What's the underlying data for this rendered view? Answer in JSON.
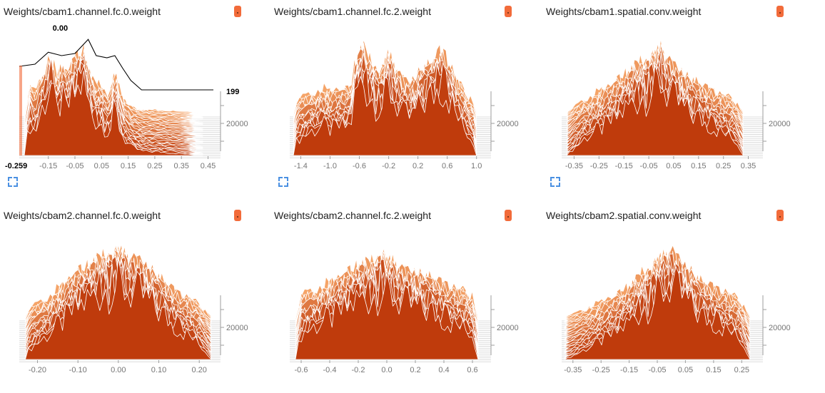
{
  "colors": {
    "front": "#bf3b0c",
    "back": "#f5a468",
    "slice_stroke": "#ffffff",
    "axis": "#9e9e9e",
    "grid": "#dcdcdc",
    "badge": "#f26b3a"
  },
  "icons": {
    "badge": "color-swatch-icon",
    "expand": "expand-icon"
  },
  "charts": [
    {
      "title": "Weights/cbam1.channel.fc.0.weight",
      "chart_data": {
        "type": "histogram",
        "mode": "offset",
        "x_ticks": [
          "-0.15",
          "-0.05",
          "0.05",
          "0.15",
          "0.25",
          "0.35",
          "0.45"
        ],
        "x_tick_values": [
          -0.15,
          -0.05,
          0.05,
          0.15,
          0.25,
          0.35,
          0.45
        ],
        "xlim": [
          -0.259,
          0.47
        ],
        "y_tick": "20000",
        "hover": {
          "x_value": "0.00",
          "x_min_label": "-0.259",
          "step": "199"
        },
        "profile": [
          [
            -0.24,
            0.0
          ],
          [
            -0.22,
            0.45
          ],
          [
            -0.2,
            0.3
          ],
          [
            -0.18,
            0.55
          ],
          [
            -0.16,
            0.75
          ],
          [
            -0.14,
            0.95
          ],
          [
            -0.12,
            0.55
          ],
          [
            -0.1,
            0.75
          ],
          [
            -0.08,
            0.6
          ],
          [
            -0.06,
            0.8
          ],
          [
            -0.04,
            0.85
          ],
          [
            -0.02,
            1.0
          ],
          [
            0.0,
            0.7
          ],
          [
            0.02,
            0.5
          ],
          [
            0.04,
            0.45
          ],
          [
            0.06,
            0.4
          ],
          [
            0.08,
            0.3
          ],
          [
            0.1,
            0.65
          ],
          [
            0.12,
            0.35
          ],
          [
            0.14,
            0.2
          ],
          [
            0.16,
            0.12
          ],
          [
            0.2,
            0.06
          ],
          [
            0.26,
            0.05
          ],
          [
            0.3,
            0.04
          ],
          [
            0.36,
            0.02
          ],
          [
            0.43,
            0.0
          ]
        ],
        "hover_profile": [
          [
            -0.259,
            0.55
          ],
          [
            -0.2,
            0.6
          ],
          [
            -0.15,
            0.88
          ],
          [
            -0.1,
            0.8
          ],
          [
            -0.05,
            0.85
          ],
          [
            0.0,
            1.18
          ],
          [
            0.03,
            0.8
          ],
          [
            0.07,
            0.75
          ],
          [
            0.1,
            0.8
          ],
          [
            0.13,
            0.5
          ],
          [
            0.16,
            0.22
          ],
          [
            0.2,
            0.0
          ],
          [
            0.47,
            0.0
          ]
        ]
      }
    },
    {
      "title": "Weights/cbam1.channel.fc.2.weight",
      "chart_data": {
        "type": "histogram",
        "mode": "offset",
        "x_ticks": [
          "-1.4",
          "-1.0",
          "-0.6",
          "-0.2",
          "0.2",
          "0.6",
          "1.0"
        ],
        "x_tick_values": [
          -1.4,
          -1.0,
          -0.6,
          -0.2,
          0.2,
          0.6,
          1.0
        ],
        "xlim": [
          -1.55,
          1.1
        ],
        "y_tick": "20000",
        "profile": [
          [
            -1.5,
            0.0
          ],
          [
            -1.45,
            0.22
          ],
          [
            -1.3,
            0.3
          ],
          [
            -1.1,
            0.4
          ],
          [
            -1.0,
            0.35
          ],
          [
            -0.9,
            0.38
          ],
          [
            -0.72,
            0.4
          ],
          [
            -0.65,
            0.85
          ],
          [
            -0.55,
            1.0
          ],
          [
            -0.45,
            0.8
          ],
          [
            -0.3,
            0.65
          ],
          [
            -0.2,
            0.9
          ],
          [
            -0.1,
            0.7
          ],
          [
            0.0,
            0.55
          ],
          [
            0.1,
            0.5
          ],
          [
            0.25,
            0.7
          ],
          [
            0.4,
            0.8
          ],
          [
            0.5,
            0.95
          ],
          [
            0.6,
            0.85
          ],
          [
            0.7,
            0.6
          ],
          [
            0.8,
            0.4
          ],
          [
            0.95,
            0.2
          ],
          [
            1.0,
            0.0
          ]
        ]
      }
    },
    {
      "title": "Weights/cbam1.spatial.conv.weight",
      "chart_data": {
        "type": "histogram",
        "mode": "offset",
        "x_ticks": [
          "-0.35",
          "-0.25",
          "-0.15",
          "-0.05",
          "0.05",
          "0.15",
          "0.25",
          "0.35"
        ],
        "x_tick_values": [
          -0.35,
          -0.25,
          -0.15,
          -0.05,
          0.05,
          0.15,
          0.25,
          0.35
        ],
        "xlim": [
          -0.4,
          0.38
        ],
        "y_tick": "20000",
        "profile": [
          [
            -0.38,
            0.0
          ],
          [
            -0.35,
            0.1
          ],
          [
            -0.3,
            0.25
          ],
          [
            -0.25,
            0.35
          ],
          [
            -0.2,
            0.45
          ],
          [
            -0.15,
            0.6
          ],
          [
            -0.1,
            0.75
          ],
          [
            -0.05,
            0.85
          ],
          [
            -0.02,
            0.9
          ],
          [
            0.0,
            1.0
          ],
          [
            0.02,
            0.85
          ],
          [
            0.05,
            0.75
          ],
          [
            0.1,
            0.6
          ],
          [
            0.15,
            0.5
          ],
          [
            0.2,
            0.4
          ],
          [
            0.25,
            0.3
          ],
          [
            0.3,
            0.2
          ],
          [
            0.33,
            0.0
          ]
        ]
      }
    },
    {
      "title": "Weights/cbam2.channel.fc.0.weight",
      "chart_data": {
        "type": "histogram",
        "mode": "offset",
        "x_ticks": [
          "-0.20",
          "-0.10",
          "0.00",
          "0.10",
          "0.20"
        ],
        "x_tick_values": [
          -0.2,
          -0.1,
          0.0,
          0.1,
          0.2
        ],
        "xlim": [
          -0.245,
          0.235
        ],
        "y_tick": "20000",
        "profile": [
          [
            -0.23,
            0.0
          ],
          [
            -0.22,
            0.15
          ],
          [
            -0.18,
            0.3
          ],
          [
            -0.14,
            0.5
          ],
          [
            -0.1,
            0.7
          ],
          [
            -0.06,
            0.85
          ],
          [
            -0.03,
            0.95
          ],
          [
            0.0,
            1.0
          ],
          [
            0.03,
            0.9
          ],
          [
            0.06,
            0.85
          ],
          [
            0.1,
            0.65
          ],
          [
            0.14,
            0.45
          ],
          [
            0.18,
            0.3
          ],
          [
            0.21,
            0.15
          ],
          [
            0.23,
            0.0
          ]
        ]
      }
    },
    {
      "title": "Weights/cbam2.channel.fc.2.weight",
      "chart_data": {
        "type": "histogram",
        "mode": "offset",
        "x_ticks": [
          "-0.6",
          "-0.4",
          "-0.2",
          "0.0",
          "0.2",
          "0.4",
          "0.6"
        ],
        "x_tick_values": [
          -0.6,
          -0.4,
          -0.2,
          0.0,
          0.2,
          0.4,
          0.6
        ],
        "xlim": [
          -0.68,
          0.68
        ],
        "y_tick": "20000",
        "profile": [
          [
            -0.64,
            0.0
          ],
          [
            -0.6,
            0.35
          ],
          [
            -0.5,
            0.45
          ],
          [
            -0.4,
            0.55
          ],
          [
            -0.3,
            0.65
          ],
          [
            -0.2,
            0.8
          ],
          [
            -0.1,
            0.85
          ],
          [
            -0.03,
            1.0
          ],
          [
            0.0,
            0.85
          ],
          [
            0.05,
            0.85
          ],
          [
            0.1,
            0.75
          ],
          [
            0.2,
            0.7
          ],
          [
            0.3,
            0.65
          ],
          [
            0.4,
            0.55
          ],
          [
            0.5,
            0.45
          ],
          [
            0.6,
            0.35
          ],
          [
            0.64,
            0.0
          ]
        ]
      }
    },
    {
      "title": "Weights/cbam2.spatial.conv.weight",
      "chart_data": {
        "type": "histogram",
        "mode": "offset",
        "x_ticks": [
          "-0.35",
          "-0.25",
          "-0.15",
          "-0.05",
          "0.05",
          "0.15",
          "0.25"
        ],
        "x_tick_values": [
          -0.35,
          -0.25,
          -0.15,
          -0.05,
          0.05,
          0.15,
          0.25
        ],
        "xlim": [
          -0.39,
          0.3
        ],
        "y_tick": "20000",
        "profile": [
          [
            -0.38,
            0.0
          ],
          [
            -0.35,
            0.05
          ],
          [
            -0.3,
            0.15
          ],
          [
            -0.25,
            0.25
          ],
          [
            -0.2,
            0.35
          ],
          [
            -0.15,
            0.5
          ],
          [
            -0.1,
            0.7
          ],
          [
            -0.05,
            0.85
          ],
          [
            -0.02,
            0.95
          ],
          [
            0.0,
            1.0
          ],
          [
            0.02,
            0.9
          ],
          [
            0.05,
            0.8
          ],
          [
            0.1,
            0.6
          ],
          [
            0.15,
            0.5
          ],
          [
            0.2,
            0.4
          ],
          [
            0.25,
            0.25
          ],
          [
            0.28,
            0.0
          ]
        ]
      }
    }
  ]
}
